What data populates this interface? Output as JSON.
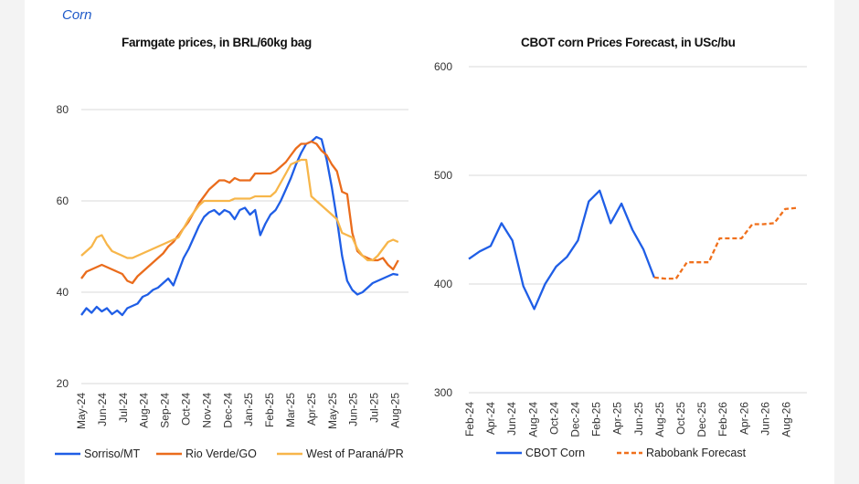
{
  "section": "Corn",
  "charts": {
    "left_title": "Farmgate prices, in BRL/60kg bag",
    "right_title": "CBOT corn Prices Forecast, in USc/bu"
  },
  "colors": {
    "sorriso": "#1f5ee6",
    "rioverde": "#ea6c1c",
    "parana": "#f7b64a",
    "grid": "#d9d9d9"
  },
  "chart_data": [
    {
      "type": "line",
      "title": "Farmgate prices, in BRL/60kg bag",
      "ylim": [
        20,
        80
      ],
      "yticks": [
        20,
        40,
        60,
        80
      ],
      "grid": true,
      "legend": "bottom",
      "x_labels": [
        "May-24",
        "Jun-24",
        "Jul-24",
        "Aug-24",
        "Sep-24",
        "Oct-24",
        "Nov-24",
        "Dec-24",
        "Jan-25",
        "Feb-25",
        "Mar-25",
        "Apr-25",
        "May-25",
        "Jun-25",
        "Jul-25",
        "Aug-25"
      ],
      "x_domain": [
        0,
        16
      ],
      "series": [
        {
          "name": "Sorriso/MT",
          "color": "#1f5ee6",
          "points": [
            [
              0.0,
              35.0
            ],
            [
              0.25,
              36.5
            ],
            [
              0.5,
              35.5
            ],
            [
              0.75,
              36.8
            ],
            [
              1.0,
              35.8
            ],
            [
              1.25,
              36.5
            ],
            [
              1.5,
              35.2
            ],
            [
              1.75,
              36.0
            ],
            [
              2.0,
              35.0
            ],
            [
              2.25,
              36.5
            ],
            [
              2.5,
              37.0
            ],
            [
              2.75,
              37.5
            ],
            [
              3.0,
              39.0
            ],
            [
              3.25,
              39.5
            ],
            [
              3.5,
              40.5
            ],
            [
              3.75,
              41.0
            ],
            [
              4.0,
              42.0
            ],
            [
              4.25,
              43.0
            ],
            [
              4.5,
              41.5
            ],
            [
              4.75,
              44.5
            ],
            [
              5.0,
              47.5
            ],
            [
              5.25,
              49.5
            ],
            [
              5.5,
              52.0
            ],
            [
              5.75,
              54.5
            ],
            [
              6.0,
              56.5
            ],
            [
              6.25,
              57.5
            ],
            [
              6.5,
              58.0
            ],
            [
              6.75,
              57.0
            ],
            [
              7.0,
              58.0
            ],
            [
              7.25,
              57.5
            ],
            [
              7.5,
              56.0
            ],
            [
              7.75,
              58.0
            ],
            [
              8.0,
              58.5
            ],
            [
              8.25,
              57.0
            ],
            [
              8.5,
              58.0
            ],
            [
              8.75,
              52.5
            ],
            [
              9.0,
              55.0
            ],
            [
              9.25,
              57.0
            ],
            [
              9.5,
              58.0
            ],
            [
              9.75,
              60.0
            ],
            [
              10.0,
              62.5
            ],
            [
              10.25,
              65.0
            ],
            [
              10.5,
              68.0
            ],
            [
              10.75,
              70.5
            ],
            [
              11.0,
              72.5
            ],
            [
              11.25,
              73.0
            ],
            [
              11.5,
              74.0
            ],
            [
              11.75,
              73.5
            ],
            [
              12.0,
              69.0
            ],
            [
              12.25,
              63.0
            ],
            [
              12.5,
              56.0
            ],
            [
              12.75,
              48.0
            ],
            [
              13.0,
              42.5
            ],
            [
              13.25,
              40.5
            ],
            [
              13.5,
              39.5
            ],
            [
              13.75,
              40.0
            ],
            [
              14.0,
              41.0
            ],
            [
              14.25,
              42.0
            ],
            [
              14.5,
              42.5
            ],
            [
              14.75,
              43.0
            ],
            [
              15.0,
              43.5
            ],
            [
              15.25,
              44.0
            ],
            [
              15.5,
              43.8
            ]
          ]
        },
        {
          "name": "Rio Verde/GO",
          "color": "#ea6c1c",
          "points": [
            [
              0.0,
              43.0
            ],
            [
              0.25,
              44.5
            ],
            [
              0.5,
              45.0
            ],
            [
              0.75,
              45.5
            ],
            [
              1.0,
              46.0
            ],
            [
              1.25,
              45.5
            ],
            [
              1.5,
              45.0
            ],
            [
              1.75,
              44.5
            ],
            [
              2.0,
              44.0
            ],
            [
              2.25,
              42.5
            ],
            [
              2.5,
              42.0
            ],
            [
              2.75,
              43.5
            ],
            [
              3.0,
              44.5
            ],
            [
              3.25,
              45.5
            ],
            [
              3.5,
              46.5
            ],
            [
              3.75,
              47.5
            ],
            [
              4.0,
              48.5
            ],
            [
              4.25,
              50.0
            ],
            [
              4.5,
              51.0
            ],
            [
              4.75,
              52.5
            ],
            [
              5.0,
              54.0
            ],
            [
              5.25,
              55.5
            ],
            [
              5.5,
              57.5
            ],
            [
              5.75,
              59.5
            ],
            [
              6.0,
              61.0
            ],
            [
              6.25,
              62.5
            ],
            [
              6.5,
              63.5
            ],
            [
              6.75,
              64.5
            ],
            [
              7.0,
              64.5
            ],
            [
              7.25,
              64.0
            ],
            [
              7.5,
              65.0
            ],
            [
              7.75,
              64.5
            ],
            [
              8.0,
              64.5
            ],
            [
              8.25,
              64.5
            ],
            [
              8.5,
              66.0
            ],
            [
              8.75,
              66.0
            ],
            [
              9.0,
              66.0
            ],
            [
              9.25,
              66.0
            ],
            [
              9.5,
              66.5
            ],
            [
              9.75,
              67.5
            ],
            [
              10.0,
              68.5
            ],
            [
              10.25,
              70.0
            ],
            [
              10.5,
              71.5
            ],
            [
              10.75,
              72.5
            ],
            [
              11.0,
              72.5
            ],
            [
              11.25,
              73.0
            ],
            [
              11.5,
              72.5
            ],
            [
              11.75,
              71.0
            ],
            [
              12.0,
              70.0
            ],
            [
              12.25,
              68.0
            ],
            [
              12.5,
              66.5
            ],
            [
              12.75,
              62.0
            ],
            [
              13.0,
              61.5
            ],
            [
              13.25,
              53.0
            ],
            [
              13.5,
              49.0
            ],
            [
              13.75,
              48.0
            ],
            [
              14.0,
              47.5
            ],
            [
              14.25,
              47.0
            ],
            [
              14.5,
              47.0
            ],
            [
              14.75,
              47.5
            ],
            [
              15.0,
              46.0
            ],
            [
              15.25,
              45.0
            ],
            [
              15.5,
              47.0
            ]
          ]
        },
        {
          "name": "West of Paraná/PR",
          "color": "#f7b64a",
          "points": [
            [
              0.0,
              48.0
            ],
            [
              0.25,
              49.0
            ],
            [
              0.5,
              50.0
            ],
            [
              0.75,
              52.0
            ],
            [
              1.0,
              52.5
            ],
            [
              1.25,
              50.5
            ],
            [
              1.5,
              49.0
            ],
            [
              1.75,
              48.5
            ],
            [
              2.0,
              48.0
            ],
            [
              2.25,
              47.5
            ],
            [
              2.5,
              47.5
            ],
            [
              2.75,
              48.0
            ],
            [
              3.0,
              48.5
            ],
            [
              3.25,
              49.0
            ],
            [
              3.5,
              49.5
            ],
            [
              3.75,
              50.0
            ],
            [
              4.0,
              50.5
            ],
            [
              4.25,
              51.0
            ],
            [
              4.5,
              51.5
            ],
            [
              4.75,
              52.0
            ],
            [
              5.0,
              54.0
            ],
            [
              5.25,
              56.0
            ],
            [
              5.5,
              57.5
            ],
            [
              5.75,
              59.0
            ],
            [
              6.0,
              60.0
            ],
            [
              6.25,
              60.0
            ],
            [
              6.5,
              60.0
            ],
            [
              6.75,
              60.0
            ],
            [
              7.0,
              60.0
            ],
            [
              7.25,
              60.0
            ],
            [
              7.5,
              60.5
            ],
            [
              7.75,
              60.5
            ],
            [
              8.0,
              60.5
            ],
            [
              8.25,
              60.5
            ],
            [
              8.5,
              61.0
            ],
            [
              8.75,
              61.0
            ],
            [
              9.0,
              61.0
            ],
            [
              9.25,
              61.0
            ],
            [
              9.5,
              62.0
            ],
            [
              9.75,
              64.0
            ],
            [
              10.0,
              66.0
            ],
            [
              10.25,
              68.0
            ],
            [
              10.5,
              68.5
            ],
            [
              10.75,
              69.0
            ],
            [
              11.0,
              69.0
            ],
            [
              11.25,
              61.0
            ],
            [
              11.5,
              60.0
            ],
            [
              11.75,
              59.0
            ],
            [
              12.0,
              58.0
            ],
            [
              12.25,
              57.0
            ],
            [
              12.5,
              56.0
            ],
            [
              12.75,
              53.0
            ],
            [
              13.0,
              52.5
            ],
            [
              13.25,
              52.0
            ],
            [
              13.5,
              49.5
            ],
            [
              13.75,
              48.0
            ],
            [
              14.0,
              47.0
            ],
            [
              14.25,
              47.0
            ],
            [
              14.5,
              48.0
            ],
            [
              14.75,
              49.5
            ],
            [
              15.0,
              51.0
            ],
            [
              15.25,
              51.5
            ],
            [
              15.5,
              51.0
            ]
          ]
        }
      ]
    },
    {
      "type": "line",
      "title": "CBOT corn Prices Forecast, in USc/bu",
      "ylim": [
        300,
        600
      ],
      "yticks": [
        300,
        400,
        500,
        600
      ],
      "grid": true,
      "legend": "bottom",
      "x_labels": [
        "Feb-24",
        "Apr-24",
        "Jun-24",
        "Aug-24",
        "Oct-24",
        "Dec-24",
        "Feb-25",
        "Apr-25",
        "Jun-25",
        "Aug-25",
        "Oct-25",
        "Dec-25",
        "Feb-26",
        "Apr-26",
        "Jun-26",
        "Aug-26"
      ],
      "x_domain": [
        0,
        31
      ],
      "series": [
        {
          "name": "CBOT Corn",
          "color": "#1f5ee6",
          "dashed": false,
          "values": [
            [
              0,
              423
            ],
            [
              1,
              430
            ],
            [
              2,
              435
            ],
            [
              3,
              456
            ],
            [
              4,
              440
            ],
            [
              5,
              398
            ],
            [
              6,
              377
            ],
            [
              7,
              400
            ],
            [
              8,
              416
            ],
            [
              9,
              425
            ],
            [
              10,
              440
            ],
            [
              11,
              476
            ],
            [
              12,
              486
            ],
            [
              13,
              456
            ],
            [
              14,
              474
            ],
            [
              15,
              450
            ],
            [
              16,
              432
            ],
            [
              17,
              406
            ]
          ]
        },
        {
          "name": "Rabobank Forecast",
          "color": "#f0701c",
          "dashed": true,
          "values": [
            [
              17,
              406
            ],
            [
              18,
              405
            ],
            [
              19,
              405
            ],
            [
              20,
              420
            ],
            [
              21,
              420
            ],
            [
              22,
              420
            ],
            [
              23,
              442
            ],
            [
              24,
              442
            ],
            [
              25,
              442
            ],
            [
              26,
              455
            ],
            [
              27,
              455
            ],
            [
              28,
              456
            ],
            [
              29,
              469
            ],
            [
              30,
              470
            ]
          ]
        }
      ]
    }
  ]
}
